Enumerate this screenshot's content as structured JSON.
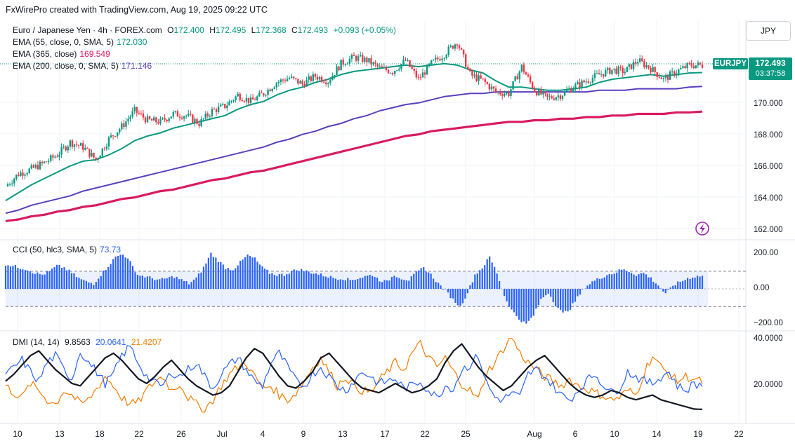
{
  "credit": "FxWirePro created with TradingView.com, Aug 19, 2025 09:22 UTC",
  "currency_button": "JPY",
  "legend": {
    "symbol": "Euro / Japanese Yen · 4h · FOREX.com",
    "ohlc": {
      "o_label": "O",
      "o": "172.400",
      "h_label": "H",
      "h": "172.495",
      "l_label": "L",
      "l": "172.368",
      "c_label": "C",
      "c": "172.493",
      "change": "+0.093 (+0.05%)"
    },
    "ema55": {
      "label": "EMA (55, close, 0, SMA, 5)",
      "value": "172.030"
    },
    "ema365": {
      "label": "EMA (365, close)",
      "value": "169.549"
    },
    "ema200": {
      "label": "EMA (200, close, 0, SMA, 5)",
      "value": "171.146"
    },
    "cci": {
      "label": "CCI (50, hlc3, SMA, 5)",
      "value": "73.73"
    },
    "dmi": {
      "label": "DMI (14, 14)",
      "adx": "9.8563",
      "plus_di": "20.0641",
      "minus_di": "21.4207"
    }
  },
  "price_tag": {
    "symbol": "EURJPY",
    "price": "172.493",
    "countdown": "03:37:58"
  },
  "colors": {
    "up": "#089981",
    "down": "#f23645",
    "ema55": "#089981",
    "ema365": "#d81b60",
    "ema200": "#5b3fbd",
    "cci": "#2962ff",
    "plus_di": "#2962ff",
    "minus_di": "#f57c00",
    "adx": "#131722"
  },
  "price_axis": {
    "ticks": [
      "170.000",
      "168.000",
      "166.000",
      "164.000",
      "162.000"
    ]
  },
  "cci_axis": {
    "ticks": [
      "200.00",
      "0.00",
      "−200.00"
    ]
  },
  "dmi_axis": {
    "ticks": [
      "40.0000",
      "20.0000"
    ]
  },
  "x_axis": {
    "ticks": [
      "10",
      "13",
      "18",
      "22",
      "26",
      "Jul",
      "4",
      "9",
      "13",
      "17",
      "22",
      "25",
      "Aug",
      "6",
      "10",
      "14",
      "19",
      "22"
    ]
  },
  "chart_data": {
    "type": "line",
    "title": "",
    "timeframe": "4h",
    "x_range": [
      "Jun 10, 2025",
      "Aug 19, 2025"
    ],
    "price": {
      "ylim": [
        161.5,
        175.3
      ],
      "candles_daily_close": [
        164.8,
        165.6,
        165.9,
        166.3,
        166.8,
        167.6,
        167.3,
        166.5,
        167.8,
        168.6,
        169.6,
        169.0,
        168.9,
        169.4,
        169.3,
        168.8,
        169.6,
        169.9,
        170.6,
        170.2,
        170.7,
        171.4,
        171.7,
        171.3,
        171.8,
        171.5,
        172.6,
        173.0,
        172.8,
        172.3,
        172.1,
        172.8,
        171.6,
        172.6,
        173.2,
        174.0,
        171.9,
        171.5,
        170.8,
        170.7,
        172.4,
        170.9,
        170.4,
        170.6,
        171.1,
        171.5,
        171.9,
        172.2,
        172.1,
        172.8,
        172.3,
        171.6,
        172.1,
        172.5,
        172.493
      ],
      "ema55": [
        163.9,
        164.4,
        164.9,
        165.3,
        165.7,
        166.1,
        166.4,
        166.5,
        166.8,
        167.2,
        167.7,
        168.0,
        168.2,
        168.5,
        168.7,
        168.9,
        169.1,
        169.3,
        169.7,
        170.0,
        170.2,
        170.6,
        170.9,
        171.1,
        171.4,
        171.6,
        171.9,
        172.1,
        172.2,
        172.3,
        172.4,
        172.5,
        172.4,
        172.5,
        172.6,
        172.5,
        172.2,
        172.0,
        171.5,
        171.1,
        171.1,
        171.0,
        170.9,
        170.9,
        171.0,
        171.1,
        171.4,
        171.6,
        171.7,
        171.8,
        171.9,
        171.8,
        171.9,
        172.0,
        172.03
      ],
      "ema200": [
        163.1,
        163.3,
        163.6,
        163.8,
        164.0,
        164.2,
        164.5,
        164.7,
        164.9,
        165.1,
        165.3,
        165.5,
        165.7,
        165.9,
        166.1,
        166.3,
        166.5,
        166.7,
        166.9,
        167.1,
        167.3,
        167.6,
        167.8,
        168.1,
        168.3,
        168.6,
        168.8,
        169.1,
        169.3,
        169.6,
        169.8,
        170.0,
        170.1,
        170.3,
        170.5,
        170.6,
        170.7,
        170.7,
        170.8,
        170.8,
        170.8,
        170.8,
        170.8,
        170.8,
        170.8,
        170.8,
        170.9,
        170.9,
        170.9,
        171.0,
        171.0,
        171.0,
        171.0,
        171.1,
        171.146
      ],
      "ema365": [
        162.6,
        162.7,
        162.9,
        163.0,
        163.2,
        163.3,
        163.5,
        163.6,
        163.8,
        164.0,
        164.1,
        164.3,
        164.5,
        164.6,
        164.8,
        165.0,
        165.2,
        165.3,
        165.5,
        165.7,
        165.8,
        166.0,
        166.2,
        166.4,
        166.6,
        166.8,
        167.0,
        167.2,
        167.4,
        167.6,
        167.8,
        168.0,
        168.1,
        168.3,
        168.4,
        168.5,
        168.6,
        168.7,
        168.8,
        168.9,
        168.9,
        169.0,
        169.0,
        169.1,
        169.1,
        169.2,
        169.2,
        169.3,
        169.3,
        169.4,
        169.4,
        169.4,
        169.5,
        169.5,
        169.549
      ]
    },
    "cci": {
      "ylim": [
        -230,
        270
      ],
      "values": [
        140,
        130,
        120,
        110,
        90,
        80,
        100,
        130,
        120,
        90,
        60,
        40,
        30,
        80,
        130,
        180,
        200,
        150,
        80,
        70,
        60,
        50,
        60,
        70,
        50,
        30,
        60,
        120,
        200,
        160,
        120,
        110,
        150,
        190,
        170,
        120,
        90,
        80,
        80,
        100,
        110,
        100,
        90,
        80,
        70,
        60,
        60,
        50,
        60,
        70,
        80,
        50,
        40,
        80,
        60,
        50,
        90,
        120,
        80,
        30,
        -10,
        -60,
        -100,
        -20,
        80,
        120,
        180,
        90,
        -40,
        -120,
        -170,
        -200,
        -150,
        -60,
        -20,
        -90,
        -140,
        -110,
        -50,
        10,
        40,
        60,
        80,
        90,
        110,
        100,
        80,
        90,
        60,
        20,
        -30,
        20,
        40,
        60,
        70,
        73.73
      ]
    },
    "dmi": {
      "ylim": [
        5,
        43
      ],
      "plus_di": [
        24,
        28,
        31,
        26,
        22,
        30,
        33,
        27,
        23,
        35,
        30,
        26,
        21,
        25,
        33,
        37,
        30,
        24,
        21,
        20,
        26,
        24,
        27,
        30,
        24,
        19,
        25,
        29,
        32,
        27,
        22,
        20,
        30,
        34,
        28,
        22,
        20,
        25,
        28,
        24,
        20,
        18,
        22,
        26,
        24,
        21,
        22,
        23,
        19,
        20,
        22,
        18,
        15,
        20,
        19,
        27,
        29,
        33,
        21,
        15,
        14,
        17,
        15,
        25,
        27,
        24,
        20,
        16,
        14,
        18,
        22,
        25,
        21,
        17,
        19,
        26,
        24,
        22,
        21,
        24,
        26,
        20,
        18,
        21,
        20.06
      ],
      "minus_di": [
        20,
        17,
        15,
        21,
        18,
        14,
        12,
        18,
        16,
        12,
        14,
        19,
        24,
        20,
        15,
        12,
        13,
        18,
        22,
        24,
        18,
        21,
        15,
        12,
        10,
        14,
        20,
        25,
        28,
        30,
        24,
        19,
        20,
        16,
        14,
        17,
        22,
        28,
        32,
        26,
        20,
        24,
        20,
        18,
        17,
        22,
        26,
        30,
        27,
        34,
        38,
        32,
        28,
        32,
        26,
        21,
        18,
        14,
        26,
        30,
        36,
        41,
        34,
        30,
        27,
        24,
        22,
        20,
        23,
        20,
        19,
        17,
        16,
        14,
        15,
        18,
        16,
        26,
        33,
        28,
        25,
        22,
        24,
        23,
        21.42
      ],
      "adx": [
        22,
        25,
        29,
        33,
        35,
        31,
        27,
        24,
        21,
        20,
        24,
        28,
        32,
        34,
        31,
        27,
        23,
        21,
        24,
        28,
        31,
        27,
        23,
        20,
        18,
        16,
        17,
        20,
        26,
        32,
        36,
        34,
        29,
        24,
        20,
        19,
        22,
        26,
        32,
        34,
        30,
        26,
        22,
        19,
        18,
        17,
        19,
        21,
        19,
        17,
        18,
        20,
        23,
        30,
        35,
        38,
        33,
        28,
        24,
        21,
        18,
        20,
        24,
        28,
        31,
        33,
        29,
        25,
        21,
        18,
        16,
        15,
        16,
        18,
        17,
        15,
        14,
        15,
        16,
        14,
        13,
        12,
        11,
        10,
        9.86
      ]
    }
  }
}
